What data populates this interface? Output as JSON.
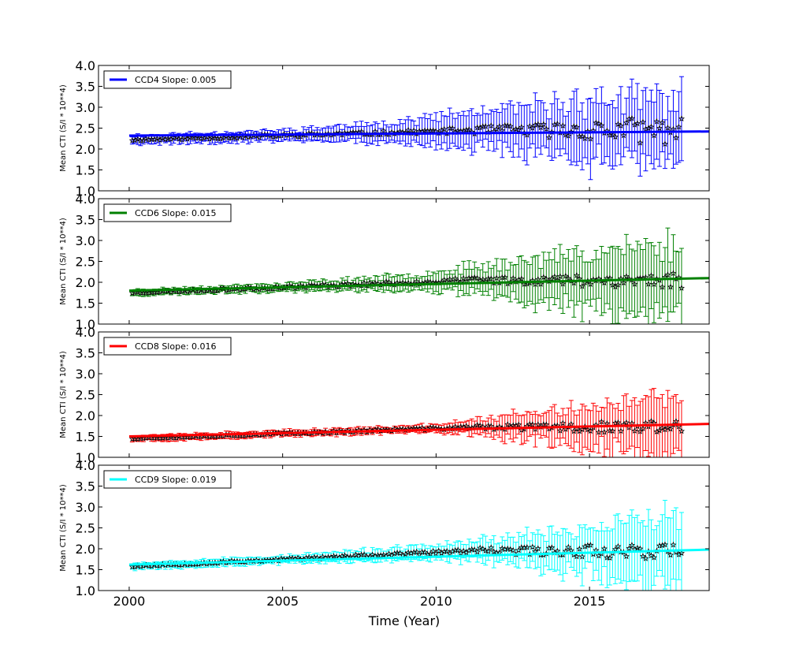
{
  "figure": {
    "xlabel": "Time (Year)",
    "ylabel": "Mean CTI (S/I * 10**4)"
  },
  "chart_data": [
    {
      "type": "scatter",
      "ccd": "CCD4",
      "legend": "CCD4 Slope: 0.005",
      "slope": 0.005,
      "color": "#0000ff",
      "xlim": [
        1999,
        2018.9
      ],
      "ylim": [
        1.0,
        4.0
      ],
      "yticks": [
        "4.0",
        "3.5",
        "3.0",
        "2.5",
        "2.0",
        "1.5",
        "1.0"
      ],
      "fit": {
        "x": [
          2000,
          2018.9
        ],
        "y": [
          2.32,
          2.42
        ]
      },
      "seed": 11,
      "points": {
        "start": 2000.1,
        "end": 2018.0,
        "count": 200,
        "baseline": [
          2.22,
          2.45
        ],
        "growth": [
          [
            2000,
            0.12
          ],
          [
            2005,
            0.15
          ],
          [
            2008,
            0.25
          ],
          [
            2012,
            0.55
          ],
          [
            2015,
            0.85
          ],
          [
            2018,
            0.9
          ]
        ],
        "scatter": [
          [
            2000,
            0.03
          ],
          [
            2010,
            0.05
          ],
          [
            2013,
            0.15
          ],
          [
            2016,
            0.3
          ],
          [
            2018,
            0.35
          ]
        ]
      },
      "legend_loc": "upper left"
    },
    {
      "type": "scatter",
      "ccd": "CCD6",
      "legend": "CCD6 Slope: 0.015",
      "slope": 0.015,
      "color": "#008000",
      "xlim": [
        1999,
        2018.9
      ],
      "ylim": [
        1.0,
        4.0
      ],
      "yticks": [
        "4.0",
        "3.5",
        "3.0",
        "2.5",
        "2.0",
        "1.5",
        "1.0"
      ],
      "fit": {
        "x": [
          2000,
          2018.9
        ],
        "y": [
          1.8,
          2.1
        ]
      },
      "seed": 23,
      "points": {
        "start": 2000.1,
        "end": 2018.0,
        "count": 200,
        "baseline": [
          1.75,
          2.05
        ],
        "growth": [
          [
            2000,
            0.08
          ],
          [
            2005,
            0.1
          ],
          [
            2009,
            0.2
          ],
          [
            2012,
            0.45
          ],
          [
            2015,
            0.8
          ],
          [
            2018,
            1.05
          ]
        ],
        "scatter": [
          [
            2000,
            0.02
          ],
          [
            2010,
            0.05
          ],
          [
            2013,
            0.1
          ],
          [
            2016,
            0.18
          ],
          [
            2018,
            0.2
          ]
        ]
      },
      "legend_loc": "upper left"
    },
    {
      "type": "scatter",
      "ccd": "CCD8",
      "legend": "CCD8 Slope: 0.016",
      "slope": 0.016,
      "color": "#ff0000",
      "xlim": [
        1999,
        2018.9
      ],
      "ylim": [
        1.0,
        4.0
      ],
      "yticks": [
        "4.0",
        "3.5",
        "3.0",
        "2.5",
        "2.0",
        "1.5",
        "1.0"
      ],
      "fit": {
        "x": [
          2000,
          2018.9
        ],
        "y": [
          1.5,
          1.8
        ]
      },
      "seed": 37,
      "points": {
        "start": 2000.1,
        "end": 2018.0,
        "count": 200,
        "baseline": [
          1.45,
          1.72
        ],
        "growth": [
          [
            2000,
            0.08
          ],
          [
            2005,
            0.08
          ],
          [
            2010,
            0.1
          ],
          [
            2012,
            0.3
          ],
          [
            2015,
            0.55
          ],
          [
            2018,
            0.85
          ]
        ],
        "scatter": [
          [
            2000,
            0.02
          ],
          [
            2010,
            0.03
          ],
          [
            2013,
            0.08
          ],
          [
            2016,
            0.15
          ],
          [
            2018,
            0.15
          ]
        ]
      },
      "legend_loc": "upper left"
    },
    {
      "type": "scatter",
      "ccd": "CCD9",
      "legend": "CCD9 Slope: 0.019",
      "slope": 0.019,
      "color": "#00ffff",
      "xlim": [
        1999,
        2018.9
      ],
      "ylim": [
        1.0,
        4.0
      ],
      "yticks": [
        "4.0",
        "3.5",
        "3.0",
        "2.5",
        "2.0",
        "1.5",
        "1.0"
      ],
      "fit": {
        "x": [
          2000,
          2018.9
        ],
        "y": [
          1.62,
          1.98
        ]
      },
      "seed": 53,
      "points": {
        "start": 2000.1,
        "end": 2018.0,
        "count": 200,
        "baseline": [
          1.58,
          1.95
        ],
        "growth": [
          [
            2000,
            0.1
          ],
          [
            2005,
            0.1
          ],
          [
            2010,
            0.2
          ],
          [
            2012,
            0.35
          ],
          [
            2015,
            0.65
          ],
          [
            2018,
            1.0
          ]
        ],
        "scatter": [
          [
            2000,
            0.02
          ],
          [
            2010,
            0.04
          ],
          [
            2013,
            0.1
          ],
          [
            2016,
            0.18
          ],
          [
            2018,
            0.2
          ]
        ]
      },
      "legend_loc": "upper left"
    }
  ],
  "xticks": [
    "2000",
    "2005",
    "2010",
    "2015"
  ],
  "xtick_values": [
    2000,
    2005,
    2010,
    2015
  ]
}
